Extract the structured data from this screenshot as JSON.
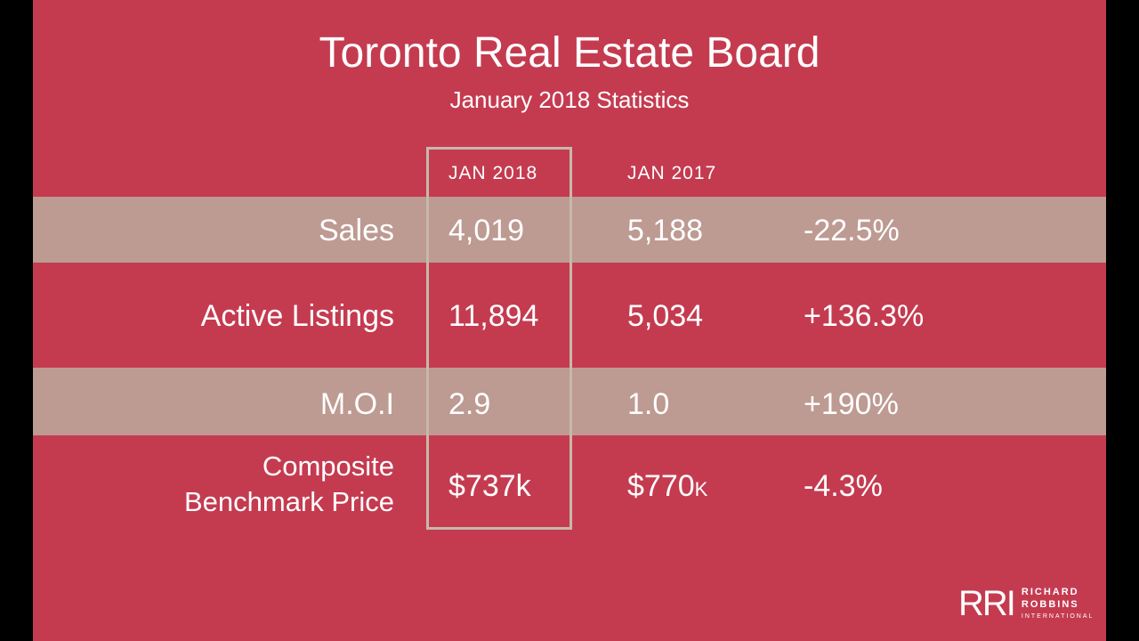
{
  "title": "Toronto Real Estate Board",
  "subtitle": "January 2018 Statistics",
  "columns": [
    "JAN 2018",
    "JAN 2017"
  ],
  "rows": [
    {
      "label": "Sales",
      "jan2018": "4,019",
      "jan2017": "5,188",
      "change": "-22.5%"
    },
    {
      "label": "Active Listings",
      "jan2018": "11,894",
      "jan2017": "5,034",
      "change": "+136.3%"
    },
    {
      "label": "M.O.I",
      "jan2018": "2.9",
      "jan2017": "1.0",
      "change": "+190%"
    },
    {
      "label_line1": "Composite",
      "label_line2": "Benchmark Price",
      "jan2018": "$737k",
      "jan2017": "$770",
      "jan2017_suffix": "K",
      "change": "-4.3%"
    }
  ],
  "logo": {
    "mark": "RRI",
    "line1": "RICHARD",
    "line2": "ROBBINS",
    "line3": "INTERNATIONAL"
  },
  "colors": {
    "background": "#c43b50",
    "band": "#bd9a92",
    "highlight_border": "#c8b8aa"
  }
}
